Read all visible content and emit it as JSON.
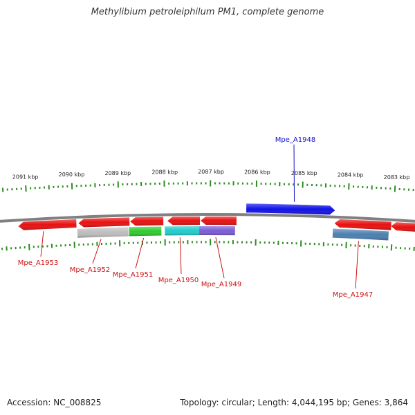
{
  "title": "Methylibium petroleiphilum PM1, complete genome",
  "footer": {
    "accession": "Accession: NC_008825",
    "summary": "Topology: circular; Length: 4,044,195 bp; Genes: 3,864"
  },
  "colors": {
    "backbone": "#808080",
    "tick": "#2e8b22",
    "forward_label": "#1010c8",
    "reverse_label": "#cc1111"
  },
  "ticks": [
    {
      "label": "2091 kbp"
    },
    {
      "label": "2090 kbp"
    },
    {
      "label": "2089 kbp"
    },
    {
      "label": "2088 kbp"
    },
    {
      "label": "2087 kbp"
    },
    {
      "label": "2086 kbp"
    },
    {
      "label": "2085 kbp"
    },
    {
      "label": "2084 kbp"
    },
    {
      "label": "2083 kbp"
    }
  ],
  "genes": [
    {
      "name": "Mpe_A1953",
      "strand": "reverse",
      "color": "#e81010"
    },
    {
      "name": "Mpe_A1952",
      "strand": "reverse",
      "color": "#e81010",
      "secondary_color": "#bdbdbd"
    },
    {
      "name": "Mpe_A1951",
      "strand": "reverse",
      "color": "#e81010",
      "secondary_color": "#2ecc2e"
    },
    {
      "name": "Mpe_A1950",
      "strand": "reverse",
      "color": "#e81010",
      "secondary_color": "#22cccc"
    },
    {
      "name": "Mpe_A1949",
      "strand": "reverse",
      "color": "#e81010",
      "secondary_color": "#7a5cd6"
    },
    {
      "name": "Mpe_A1948",
      "strand": "forward",
      "color": "#1010e8"
    },
    {
      "name": "Mpe_A1947",
      "strand": "reverse",
      "color": "#e81010",
      "secondary_color": "#4a7fb0"
    }
  ]
}
